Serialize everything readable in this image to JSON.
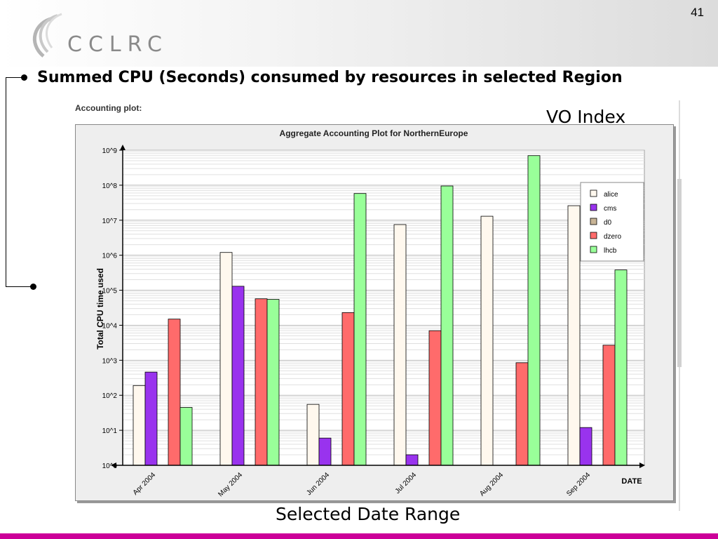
{
  "slide": {
    "page_number": "41",
    "logo_text": "CCLRC",
    "heading": "Summed CPU (Seconds) consumed by resources in selected Region",
    "section_label": "Accounting plot:",
    "annotation_vo": "VO Index",
    "annotation_date": "Selected Date Range"
  },
  "colors": {
    "footer_bar": "#cc0099",
    "chart_bg": "#eeeeee",
    "plot_bg": "#ffffff",
    "grid": "#cccccc"
  },
  "chart_data": {
    "type": "bar",
    "title": "Aggregate Accounting Plot for NorthernEurope",
    "xlabel": "DATE",
    "ylabel": "Total CPU time used",
    "yscale": "log",
    "ylim": [
      1,
      1000000000
    ],
    "y_ticks": [
      "10^0",
      "10^1",
      "10^2",
      "10^3",
      "10^4",
      "10^5",
      "10^6",
      "10^7",
      "10^8",
      "10^9"
    ],
    "categories": [
      "Apr 2004",
      "May 2004",
      "Jun 2004",
      "Jul 2004",
      "Aug 2004",
      "Sep 2004"
    ],
    "grid": true,
    "legend_position": "top-right",
    "series": [
      {
        "name": "alice",
        "color": "#fff8ee",
        "values": [
          190,
          1200000,
          55,
          7500000,
          13000000,
          26000000
        ]
      },
      {
        "name": "cms",
        "color": "#9933ee",
        "values": [
          460,
          130000,
          6,
          2,
          null,
          12
        ]
      },
      {
        "name": "d0",
        "color": "#c8b496",
        "values": [
          null,
          null,
          null,
          null,
          null,
          null
        ]
      },
      {
        "name": "dzero",
        "color": "#ff6b6b",
        "values": [
          15000,
          57000,
          23000,
          7000,
          850,
          2700
        ]
      },
      {
        "name": "lhcb",
        "color": "#99ff99",
        "values": [
          45,
          55000,
          58000000,
          95000000,
          700000000,
          380000
        ]
      }
    ]
  }
}
